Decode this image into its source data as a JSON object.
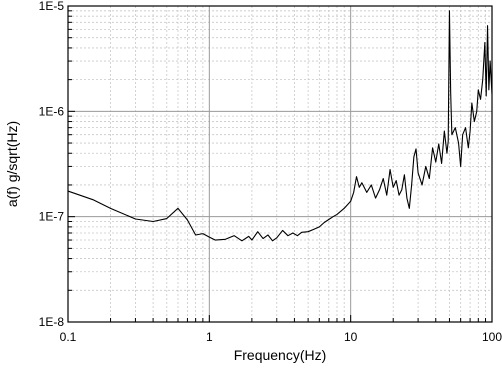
{
  "chart_data": {
    "type": "line",
    "title": "",
    "xlabel": "Frequency(Hz)",
    "ylabel": "a(f) g/sqrt(Hz)",
    "xscale": "log",
    "yscale": "log",
    "xlim": [
      0.1,
      100
    ],
    "ylim": [
      1e-08,
      1e-05
    ],
    "grid": true,
    "legend": "none",
    "x_ticks": [
      {
        "value": 0.1,
        "label": "0.1"
      },
      {
        "value": 1,
        "label": "1"
      },
      {
        "value": 10,
        "label": "10"
      },
      {
        "value": 100,
        "label": "100"
      }
    ],
    "y_ticks": [
      {
        "value": 1e-08,
        "label": "1E-8"
      },
      {
        "value": 1e-07,
        "label": "1E-7"
      },
      {
        "value": 1e-06,
        "label": "1E-6"
      },
      {
        "value": 1e-05,
        "label": "1E-5"
      }
    ],
    "series": [
      {
        "color": "#000000",
        "points": [
          [
            0.1,
            1.75e-07
          ],
          [
            0.15,
            1.45e-07
          ],
          [
            0.2,
            1.2e-07
          ],
          [
            0.3,
            9.5e-08
          ],
          [
            0.4,
            9e-08
          ],
          [
            0.5,
            9.6e-08
          ],
          [
            0.6,
            1.2e-07
          ],
          [
            0.7,
            9.3e-08
          ],
          [
            0.8,
            6.7e-08
          ],
          [
            0.9,
            6.9e-08
          ],
          [
            1.0,
            6.4e-08
          ],
          [
            1.1,
            6e-08
          ],
          [
            1.3,
            6.1e-08
          ],
          [
            1.5,
            6.6e-08
          ],
          [
            1.7,
            5.9e-08
          ],
          [
            1.9,
            6.5e-08
          ],
          [
            2.0,
            6e-08
          ],
          [
            2.2,
            7.2e-08
          ],
          [
            2.4,
            6.2e-08
          ],
          [
            2.6,
            6.7e-08
          ],
          [
            2.8,
            5.9e-08
          ],
          [
            3.0,
            6.3e-08
          ],
          [
            3.3,
            7.4e-08
          ],
          [
            3.6,
            6.6e-08
          ],
          [
            3.9,
            7e-08
          ],
          [
            4.2,
            6.6e-08
          ],
          [
            4.5,
            7.1e-08
          ],
          [
            5.0,
            7.2e-08
          ],
          [
            5.5,
            7.6e-08
          ],
          [
            6.0,
            8e-08
          ],
          [
            6.5,
            8.8e-08
          ],
          [
            7.0,
            9.4e-08
          ],
          [
            7.5,
            1e-07
          ],
          [
            8.0,
            1.05e-07
          ],
          [
            9.0,
            1.2e-07
          ],
          [
            10.0,
            1.4e-07
          ],
          [
            10.5,
            1.7e-07
          ],
          [
            11.0,
            2.4e-07
          ],
          [
            11.5,
            1.9e-07
          ],
          [
            12.0,
            2.1e-07
          ],
          [
            13.0,
            1.7e-07
          ],
          [
            14.0,
            2e-07
          ],
          [
            15.0,
            1.5e-07
          ],
          [
            16.0,
            1.8e-07
          ],
          [
            17.0,
            2.3e-07
          ],
          [
            18.0,
            1.6e-07
          ],
          [
            19.0,
            2.8e-07
          ],
          [
            20.0,
            1.9e-07
          ],
          [
            21.0,
            2.2e-07
          ],
          [
            22.0,
            1.6e-07
          ],
          [
            23.0,
            1.8e-07
          ],
          [
            24.0,
            2.5e-07
          ],
          [
            25.0,
            1.5e-07
          ],
          [
            26.0,
            1.2e-07
          ],
          [
            27.0,
            2e-07
          ],
          [
            28.0,
            3.7e-07
          ],
          [
            29.0,
            4.4e-07
          ],
          [
            30.0,
            2.6e-07
          ],
          [
            32.0,
            2e-07
          ],
          [
            34.0,
            3e-07
          ],
          [
            36.0,
            2.3e-07
          ],
          [
            38.0,
            4.5e-07
          ],
          [
            40.0,
            3.3e-07
          ],
          [
            42.0,
            4.9e-07
          ],
          [
            44.0,
            3.2e-07
          ],
          [
            46.0,
            6.5e-07
          ],
          [
            48.0,
            4e-07
          ],
          [
            49.0,
            5.2e-07
          ],
          [
            50.0,
            9e-06
          ],
          [
            51.0,
            1.5e-06
          ],
          [
            52.0,
            6e-07
          ],
          [
            55.0,
            7e-07
          ],
          [
            58.0,
            5e-07
          ],
          [
            60.0,
            3e-07
          ],
          [
            62.0,
            6e-07
          ],
          [
            65.0,
            7e-07
          ],
          [
            68.0,
            4.5e-07
          ],
          [
            70.0,
            6.5e-07
          ],
          [
            72.0,
            1.2e-06
          ],
          [
            75.0,
            8e-07
          ],
          [
            78.0,
            1e-06
          ],
          [
            80.0,
            1.6e-06
          ],
          [
            83.0,
            1.3e-06
          ],
          [
            86.0,
            2e-06
          ],
          [
            89.0,
            4.5e-06
          ],
          [
            91.0,
            1.4e-06
          ],
          [
            93.0,
            6.5e-06
          ],
          [
            95.0,
            1.6e-06
          ],
          [
            97.0,
            3e-06
          ],
          [
            100.0,
            1.45e-06
          ]
        ]
      }
    ]
  }
}
